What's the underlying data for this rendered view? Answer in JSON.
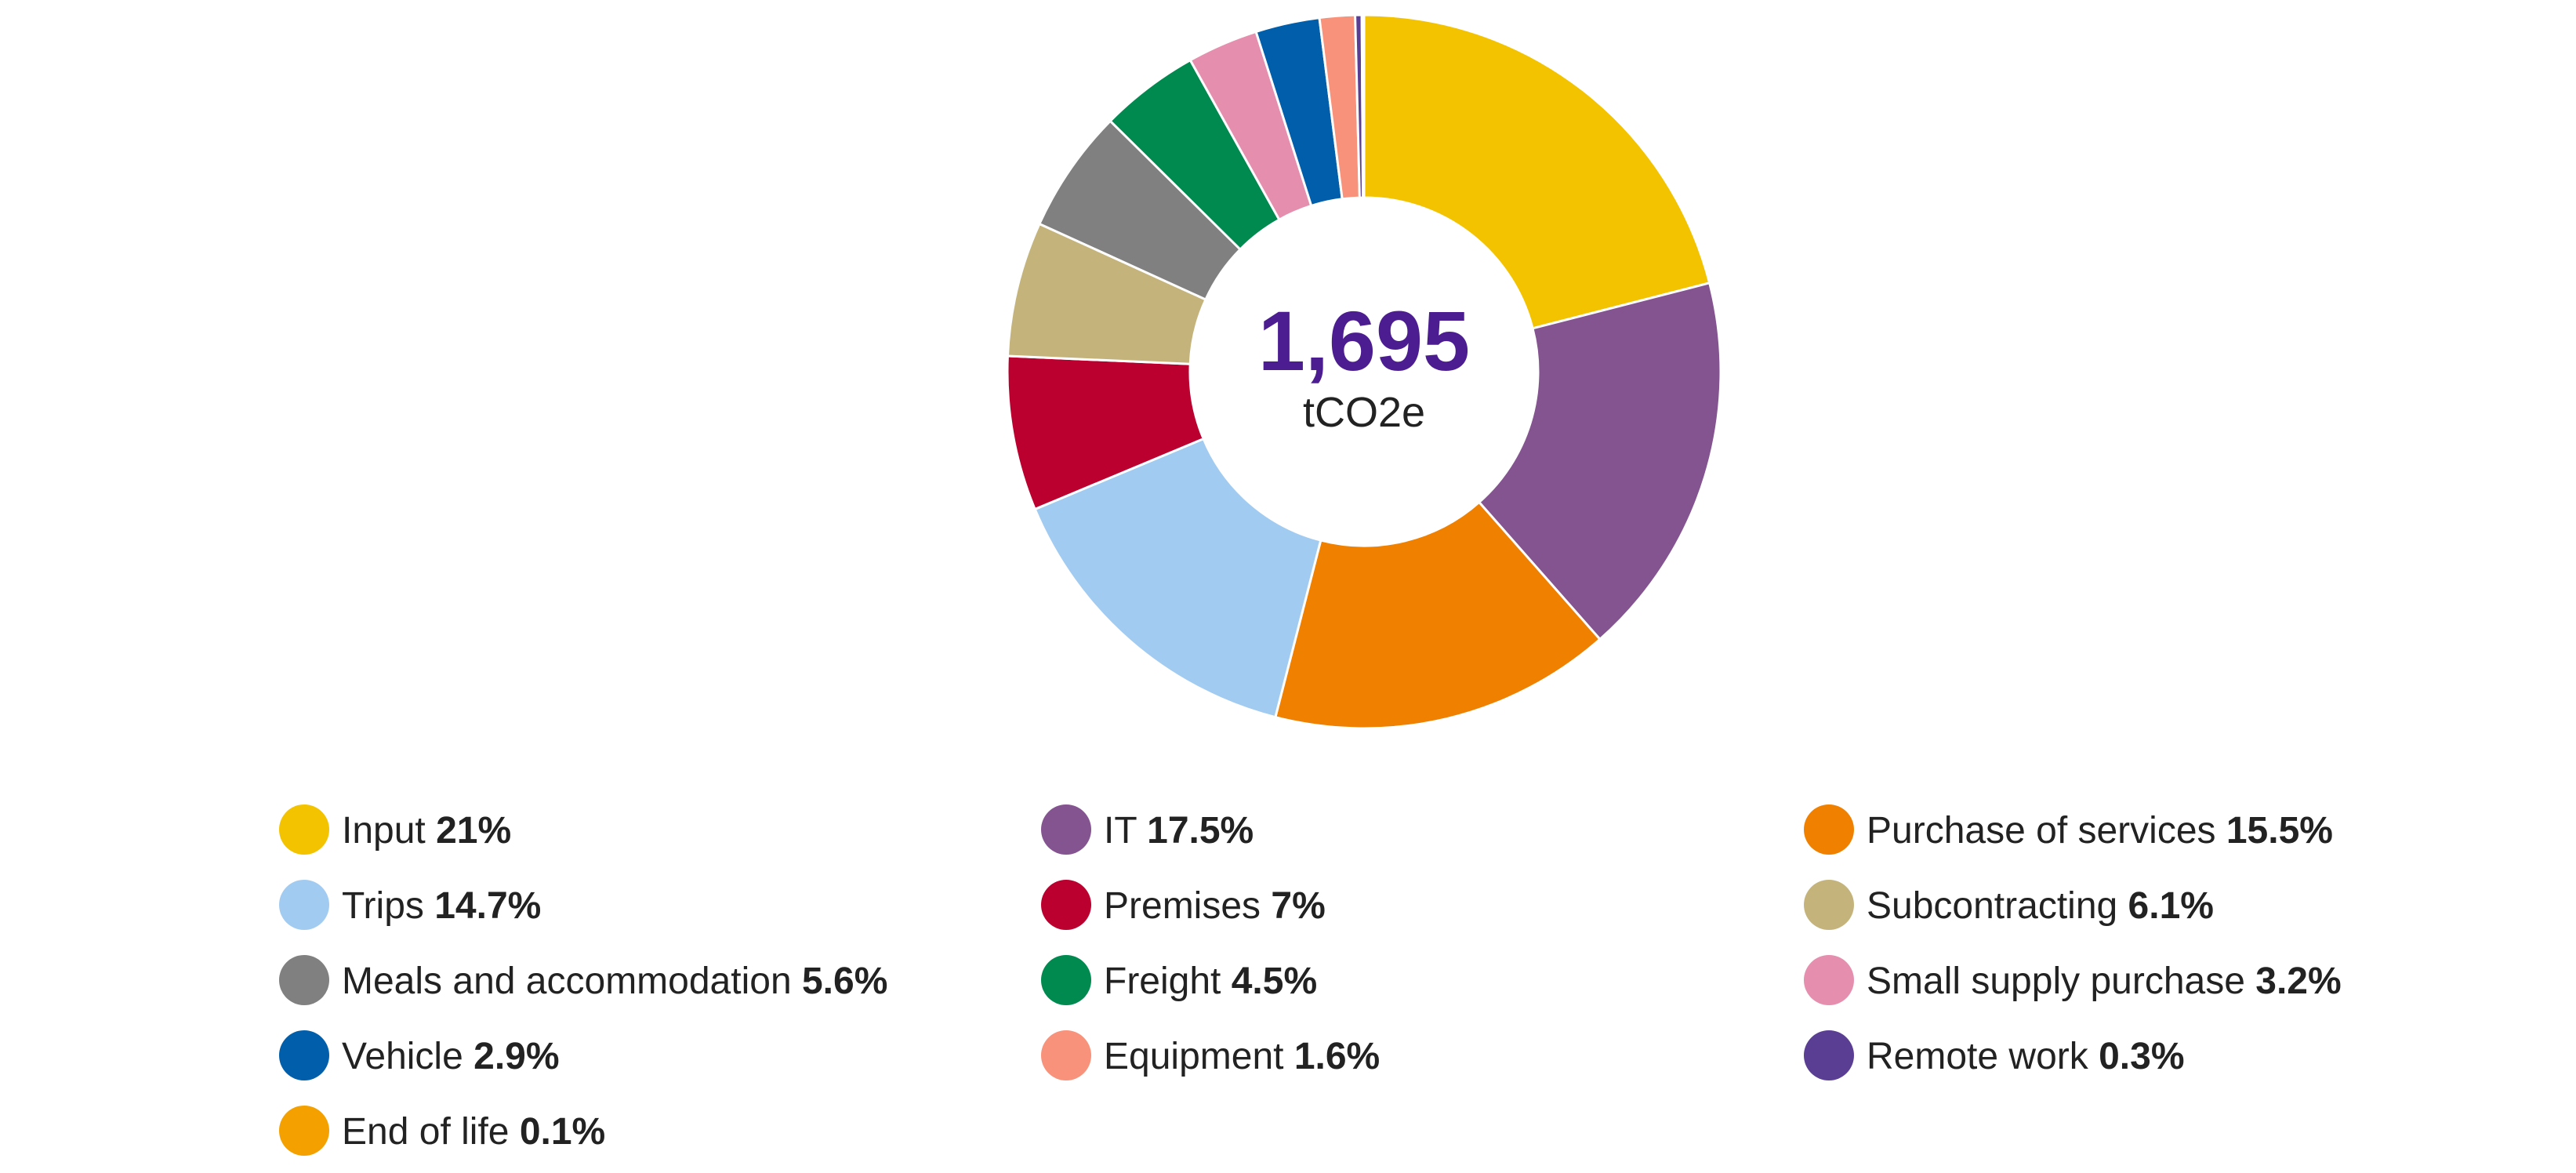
{
  "chart_data": {
    "type": "pie",
    "variant": "donut",
    "center_value": "1,695",
    "center_unit": "tCO2e",
    "center_color": "#4b1d91",
    "legend_position": "bottom",
    "value_unit": "%",
    "slices": [
      {
        "label": "Input",
        "value": 21,
        "value_label": "21%",
        "color": "#f4c300"
      },
      {
        "label": "IT",
        "value": 17.5,
        "value_label": "17.5%",
        "color": "#845490"
      },
      {
        "label": "Purchase of services",
        "value": 15.5,
        "value_label": "15.5%",
        "color": "#f08000"
      },
      {
        "label": "Trips",
        "value": 14.7,
        "value_label": "14.7%",
        "color": "#a2cbf1"
      },
      {
        "label": "Premises",
        "value": 7,
        "value_label": "7%",
        "color": "#bb0030"
      },
      {
        "label": "Subcontracting",
        "value": 6.1,
        "value_label": "6.1%",
        "color": "#c4b47c"
      },
      {
        "label": "Meals and accommodation",
        "value": 5.6,
        "value_label": "5.6%",
        "color": "#808080"
      },
      {
        "label": "Freight",
        "value": 4.5,
        "value_label": "4.5%",
        "color": "#008a50"
      },
      {
        "label": "Small supply purchase",
        "value": 3.2,
        "value_label": "3.2%",
        "color": "#e68eae"
      },
      {
        "label": "Vehicle",
        "value": 2.9,
        "value_label": "2.9%",
        "color": "#005eaa"
      },
      {
        "label": "Equipment",
        "value": 1.6,
        "value_label": "1.6%",
        "color": "#f8927a"
      },
      {
        "label": "Remote work",
        "value": 0.3,
        "value_label": "0.3%",
        "color": "#5a3e93"
      },
      {
        "label": "End of life",
        "value": 0.1,
        "value_label": "0.1%",
        "color": "#f4a100"
      }
    ]
  }
}
